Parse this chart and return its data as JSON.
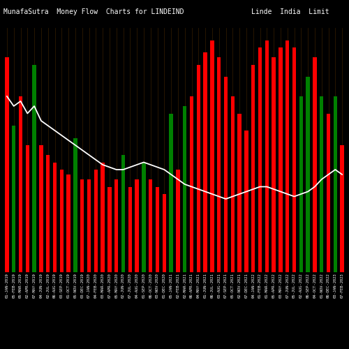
{
  "title": "MunafaSutra  Money Flow  Charts for LINDEIND",
  "title_right": "Linde  India  Limit",
  "background_color": "#000000",
  "grid_color": "#3a2000",
  "labels": [
    "01-JAN-2019",
    "05-FEB-2019",
    "05-MAR-2019",
    "02-APR-2019",
    "07-MAY-2019",
    "04-JUN-2019",
    "02-JUL-2019",
    "06-AUG-2019",
    "03-SEP-2019",
    "01-OCT-2019",
    "05-NOV-2019",
    "03-DEC-2019",
    "07-JAN-2020",
    "04-FEB-2020",
    "03-MAR-2020",
    "07-APR-2020",
    "05-MAY-2020",
    "02-JUN-2020",
    "07-JUL-2020",
    "04-AUG-2020",
    "01-SEP-2020",
    "06-OCT-2020",
    "03-NOV-2020",
    "01-DEC-2020",
    "05-JAN-2021",
    "02-FEB-2021",
    "02-MAR-2021",
    "06-APR-2021",
    "04-MAY-2021",
    "01-JUN-2021",
    "06-JUL-2021",
    "03-AUG-2021",
    "07-SEP-2021",
    "05-OCT-2021",
    "02-NOV-2021",
    "07-DEC-2021",
    "04-JAN-2022",
    "01-FEB-2022",
    "01-MAR-2022",
    "05-APR-2022",
    "03-MAY-2022",
    "07-JUN-2022",
    "05-JUL-2022",
    "02-AUG-2022",
    "06-SEP-2022",
    "04-OCT-2022",
    "01-NOV-2022",
    "06-DEC-2022",
    "03-JAN-2023",
    "07-FEB-2023"
  ],
  "bar_colors": [
    "red",
    "green",
    "red",
    "red",
    "green",
    "red",
    "red",
    "red",
    "red",
    "red",
    "green",
    "red",
    "red",
    "red",
    "red",
    "red",
    "red",
    "green",
    "red",
    "red",
    "green",
    "red",
    "red",
    "red",
    "green",
    "red",
    "green",
    "red",
    "red",
    "red",
    "red",
    "red",
    "red",
    "red",
    "red",
    "red",
    "red",
    "red",
    "red",
    "red",
    "red",
    "red",
    "red",
    "green",
    "green",
    "red",
    "green",
    "red",
    "green",
    "red"
  ],
  "bar_heights": [
    88,
    60,
    72,
    52,
    85,
    52,
    48,
    45,
    42,
    40,
    55,
    38,
    38,
    42,
    45,
    35,
    38,
    48,
    35,
    38,
    45,
    38,
    35,
    32,
    65,
    42,
    68,
    72,
    85,
    90,
    95,
    88,
    80,
    72,
    65,
    58,
    85,
    92,
    95,
    88,
    92,
    95,
    92,
    72,
    80,
    88,
    72,
    65,
    72,
    52
  ],
  "line_values": [
    72,
    68,
    70,
    65,
    68,
    62,
    60,
    58,
    56,
    54,
    52,
    50,
    48,
    46,
    44,
    43,
    42,
    42,
    43,
    44,
    45,
    44,
    43,
    42,
    40,
    38,
    36,
    35,
    34,
    33,
    32,
    31,
    30,
    31,
    32,
    33,
    34,
    35,
    35,
    34,
    33,
    32,
    31,
    32,
    33,
    35,
    38,
    40,
    42,
    40
  ],
  "line_color": "#ffffff",
  "text_color": "#ffffff",
  "title_fontsize": 7,
  "label_fontsize": 4,
  "figsize": [
    5.0,
    5.0
  ],
  "dpi": 100,
  "ylim": [
    0,
    100
  ]
}
